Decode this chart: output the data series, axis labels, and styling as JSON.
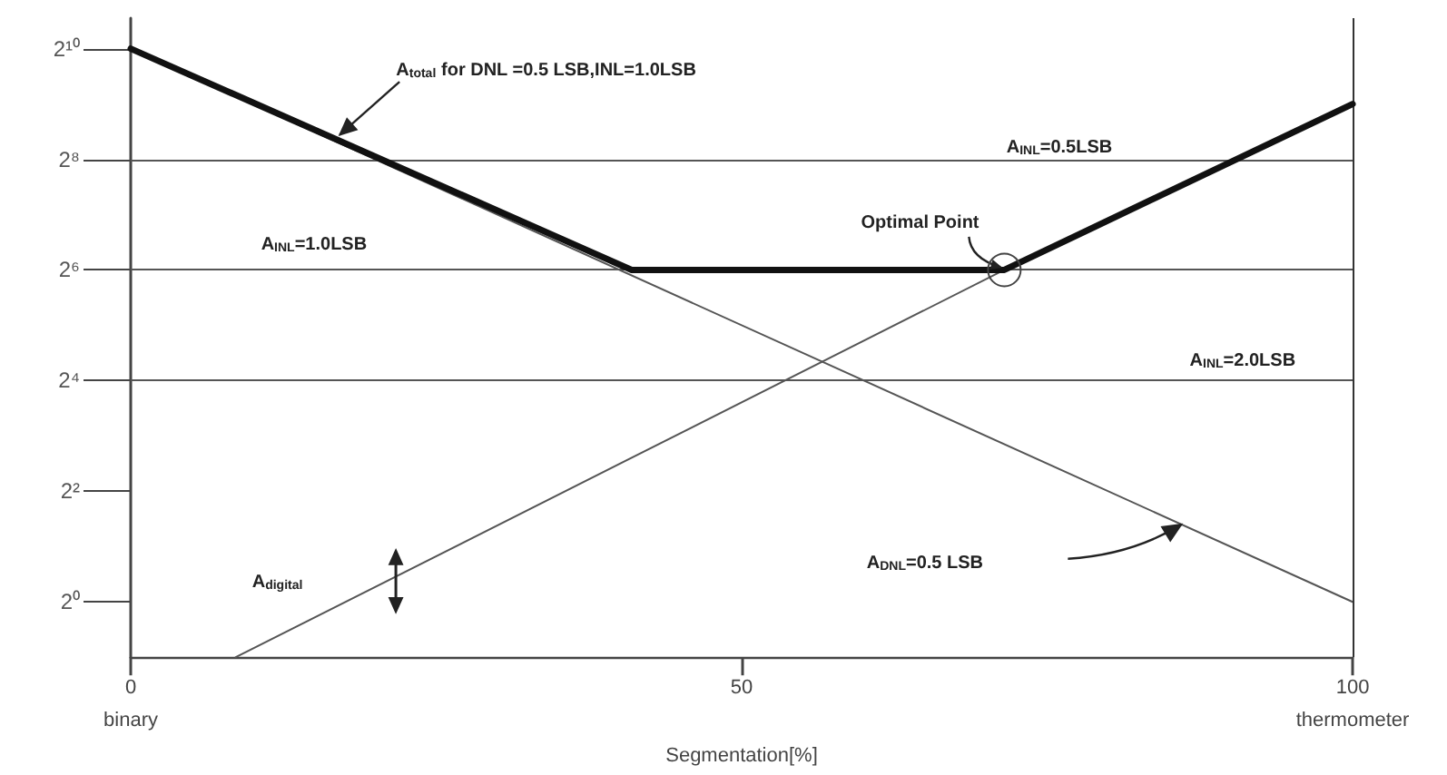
{
  "chart_data": {
    "type": "line",
    "xlabel": "Segmentation[%]",
    "xlim": [
      0,
      100
    ],
    "xticks": [
      {
        "value": 0,
        "label": "0\nbinary"
      },
      50,
      {
        "value": 100,
        "label": "100\nthermometer"
      }
    ],
    "log": "y",
    "ylim": [
      0.5,
      1500
    ],
    "yticks": [
      {
        "value": 1,
        "label": "2⁰"
      },
      {
        "value": 4,
        "label": "2²"
      },
      {
        "value": 16,
        "label": "2⁴"
      },
      {
        "value": 64,
        "label": "2⁶"
      },
      {
        "value": 256,
        "label": "2⁸"
      },
      {
        "value": 1024,
        "label": "2¹⁰"
      }
    ],
    "series": [
      {
        "color": "#111111",
        "x": [
          0,
          41,
          71.5,
          100
        ],
        "values": [
          1024,
          64,
          64,
          512
        ]
      },
      {
        "color": "#555555",
        "x": [
          0,
          100
        ],
        "values": [
          1024,
          1
        ]
      },
      {
        "color": "#555555",
        "x": [
          8.6,
          71.5
        ],
        "values": [
          0.5,
          64
        ]
      }
    ],
    "ref_lines": [
      {
        "axis": "y",
        "value": 256,
        "color": "#555555"
      },
      {
        "axis": "y",
        "value": 64,
        "color": "#555555"
      },
      {
        "axis": "y",
        "value": 16,
        "color": "#555555"
      },
      {
        "axis": "x",
        "value": 100,
        "color": "#333333"
      }
    ],
    "annotations": [
      "A$_{total}$ for DNL =0.5 LSB,INL=1.0LSB",
      "A$_{INL}$=0.5LSB",
      "A$_{INL}$=1.0LSB",
      "Optimal Point",
      "A$_{INL}$=2.0LSB",
      "A$_{digital}$",
      "A$_{DNL}$=0.5 LSB"
    ],
    "grid": false,
    "legend": false,
    "marker": "none",
    "line_style": "solid"
  }
}
